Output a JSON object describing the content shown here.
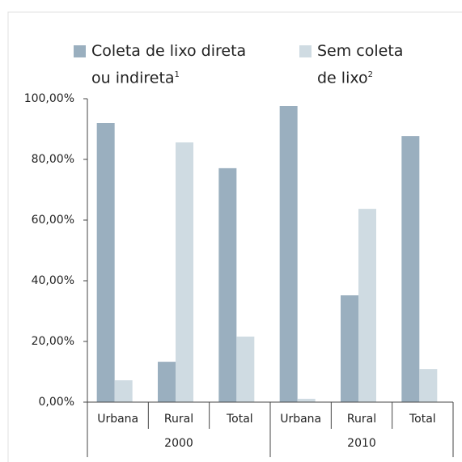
{
  "chart_data": {
    "type": "bar",
    "groups": [
      {
        "label": "2000",
        "categories": [
          "Urbana",
          "Rural",
          "Total"
        ]
      },
      {
        "label": "2010",
        "categories": [
          "Urbana",
          "Rural",
          "Total"
        ]
      }
    ],
    "series": [
      {
        "name": "Coleta de lixo direta ou indireta",
        "note": "1",
        "color": "#9aafbf",
        "values": [
          92.0,
          13.3,
          77.1,
          97.6,
          35.2,
          87.7
        ]
      },
      {
        "name": "Sem coleta de lixo",
        "note": "2",
        "color": "#cfdbe2",
        "values": [
          7.2,
          85.6,
          21.6,
          1.1,
          63.7,
          10.9
        ]
      }
    ],
    "ylim": [
      0,
      100
    ],
    "yticks": [
      {
        "value": 0,
        "label": "0,00%"
      },
      {
        "value": 20,
        "label": "20,00%"
      },
      {
        "value": 40,
        "label": "40,00%"
      },
      {
        "value": 60,
        "label": "60,00%"
      },
      {
        "value": 80,
        "label": "80,00%"
      },
      {
        "value": 100,
        "label": "100,00%"
      }
    ],
    "grid": false
  }
}
